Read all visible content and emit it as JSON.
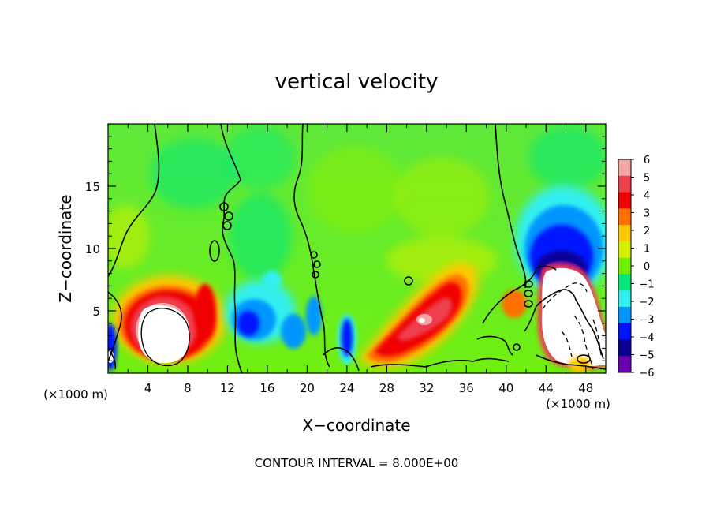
{
  "chart_data": {
    "type": "heatmap",
    "title": "vertical velocity",
    "xlabel": "X−coordinate",
    "ylabel": "Z−coordinate",
    "x_unit_left": "(×1000 m)",
    "x_unit_right": "(×1000 m)",
    "footer": "CONTOUR INTERVAL = 8.000E+00",
    "xlim": [
      0,
      50
    ],
    "ylim": [
      0,
      20
    ],
    "x_ticks": [
      "4",
      "8",
      "12",
      "16",
      "20",
      "24",
      "28",
      "32",
      "36",
      "40",
      "44",
      "48"
    ],
    "y_ticks": [
      "5",
      "10",
      "15"
    ],
    "colorbar": {
      "levels": [
        "6",
        "5",
        "4",
        "3",
        "2",
        "1",
        "0",
        "−1",
        "−2",
        "−3",
        "−4",
        "−5",
        "−6"
      ],
      "colors": [
        "#f4a6a6",
        "#ef4050",
        "#f00000",
        "#ff7000",
        "#ffc800",
        "#d6f000",
        "#70ef00",
        "#00e87a",
        "#30f0f0",
        "#0096ff",
        "#0014ff",
        "#0a0096",
        "#6a00b0"
      ]
    },
    "features": [
      {
        "x": 5.5,
        "z": 3.3,
        "w": 7,
        "region": "updraft core, saturated above 6"
      },
      {
        "x": 14.5,
        "z": 4.2,
        "w": -4,
        "region": "downdraft"
      },
      {
        "x": 24,
        "z": 3,
        "w": -4,
        "region": "narrow downdraft"
      },
      {
        "x": 31.5,
        "z": 4.5,
        "w": 6,
        "region": "sloping updraft"
      },
      {
        "x": 45.5,
        "z": 4.8,
        "w": 7,
        "region": "updraft core, saturated above 6"
      },
      {
        "x": 45,
        "z": 9,
        "w": -5,
        "region": "downdraft above core"
      }
    ]
  }
}
